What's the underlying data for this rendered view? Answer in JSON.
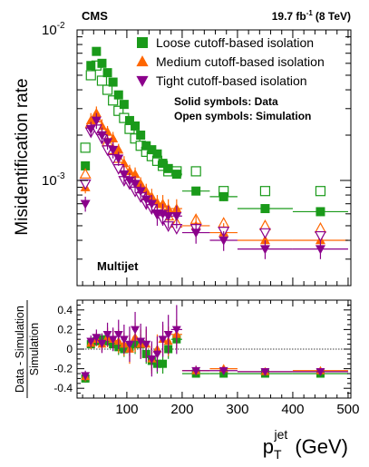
{
  "chart_data": [
    {
      "type": "scatter",
      "panel": "top",
      "title": "",
      "xlabel": "",
      "ylabel": "Misidentification rate",
      "xlim": [
        10,
        505
      ],
      "ylim": [
        0.0002,
        0.01
      ],
      "yscale": "log",
      "grid": false,
      "yticks": [
        {
          "value": 0.001,
          "base": "10",
          "exp": "-3"
        },
        {
          "value": 0.01,
          "base": "10",
          "exp": "-2"
        }
      ],
      "header_left": "CMS",
      "lumi": {
        "value": "19.7 fb",
        "exp": "-1",
        "energy": "(8 TeV)"
      },
      "legend_position": "top-right",
      "notes": [
        "Solid symbols: Data",
        "Open symbols: Simulation"
      ],
      "process_label": "Multijet",
      "colors": {
        "loose": "#1a9a1a",
        "medium": "#ff6600",
        "tight": "#8b008b"
      },
      "x_bins": [
        {
          "x": 25,
          "xw": 5
        },
        {
          "x": 35,
          "xw": 5
        },
        {
          "x": 45,
          "xw": 5
        },
        {
          "x": 55,
          "xw": 5
        },
        {
          "x": 65,
          "xw": 5
        },
        {
          "x": 75,
          "xw": 5
        },
        {
          "x": 85,
          "xw": 5
        },
        {
          "x": 95,
          "xw": 5
        },
        {
          "x": 105,
          "xw": 5
        },
        {
          "x": 115,
          "xw": 5
        },
        {
          "x": 125,
          "xw": 5
        },
        {
          "x": 135,
          "xw": 5
        },
        {
          "x": 145,
          "xw": 5
        },
        {
          "x": 155,
          "xw": 5
        },
        {
          "x": 165,
          "xw": 5
        },
        {
          "x": 175,
          "xw": 5
        },
        {
          "x": 190,
          "xw": 10
        },
        {
          "x": 225,
          "xw": 25
        },
        {
          "x": 275,
          "xw": 25
        },
        {
          "x": 350,
          "xw": 50
        },
        {
          "x": 450,
          "xw": 50
        }
      ],
      "series": [
        {
          "name": "Loose cutoff-based isolation",
          "color_key": "loose",
          "marker": "square",
          "data": [
            0.00125,
            0.0058,
            0.0072,
            0.006,
            0.0052,
            0.0045,
            0.0037,
            0.0032,
            0.0025,
            0.0023,
            0.002,
            0.0017,
            0.0016,
            0.0015,
            0.0013,
            0.0012,
            0.0011,
            0.00085,
            0.00078,
            0.00065,
            0.00062
          ],
          "mc": [
            0.00165,
            0.005,
            0.0058,
            0.0046,
            0.004,
            0.0034,
            0.0029,
            0.0026,
            0.0022,
            0.0019,
            0.0017,
            0.00155,
            0.00145,
            0.00135,
            0.00125,
            0.00115,
            0.00115,
            0.00115,
            0.00085,
            0.00085,
            0.00085
          ],
          "err": [
            5e-05,
            0.0003,
            0.0004,
            0.0003,
            0.00025,
            0.0002,
            0.00015,
            0.00015,
            0.0001,
            0.0001,
            0.0001,
            8e-05,
            8e-05,
            8e-05,
            7e-05,
            7e-05,
            7e-05,
            5e-05,
            5e-05,
            4e-05,
            4e-05
          ]
        },
        {
          "name": "Medium cutoff-based isolation",
          "color_key": "medium",
          "marker": "triangle-up",
          "data": [
            0.0009,
            0.0025,
            0.0028,
            0.0023,
            0.0021,
            0.0019,
            0.0016,
            0.0013,
            0.00115,
            0.0011,
            0.00095,
            0.00085,
            0.00078,
            0.0007,
            0.0007,
            0.00065,
            0.00065,
            0.0005,
            0.00045,
            0.0004,
            0.0004
          ],
          "mc": [
            0.0011,
            0.0024,
            0.0026,
            0.0022,
            0.0018,
            0.0016,
            0.0014,
            0.0012,
            0.0011,
            0.00095,
            0.00088,
            0.0008,
            0.00075,
            0.0007,
            0.00062,
            0.00058,
            0.00052,
            0.00055,
            0.00052,
            0.0005,
            0.00048
          ],
          "err": [
            8e-05,
            0.0003,
            0.0003,
            0.00025,
            0.0002,
            0.0002,
            0.00015,
            0.00015,
            0.00012,
            0.00012,
            0.0001,
            0.0001,
            0.0001,
            0.0001,
            0.0001,
            0.0001,
            0.0001,
            8e-05,
            7e-05,
            6e-05,
            6e-05
          ]
        },
        {
          "name": "Tight cutoff-based isolation",
          "color_key": "tight",
          "marker": "triangle-down",
          "data": [
            0.0007,
            0.0022,
            0.0025,
            0.002,
            0.0018,
            0.0016,
            0.0014,
            0.0011,
            0.001,
            0.00095,
            0.00085,
            0.00075,
            0.0007,
            0.0006,
            0.0006,
            0.00058,
            0.00058,
            0.00045,
            0.0004,
            0.00035,
            0.00035
          ],
          "mc": [
            0.00095,
            0.0021,
            0.0022,
            0.0019,
            0.0016,
            0.0014,
            0.0012,
            0.001,
            0.00095,
            0.00085,
            0.00078,
            0.0007,
            0.00065,
            0.0006,
            0.00055,
            0.0005,
            0.00048,
            0.00048,
            0.00046,
            0.00045,
            0.00043
          ],
          "err": [
            8e-05,
            0.00025,
            0.0003,
            0.00025,
            0.0002,
            0.0002,
            0.00015,
            0.00015,
            0.00012,
            0.00012,
            0.0001,
            0.0001,
            0.0001,
            0.0001,
            0.0001,
            0.0001,
            0.0001,
            7e-05,
            6e-05,
            5e-05,
            5e-05
          ]
        }
      ]
    },
    {
      "type": "scatter",
      "panel": "ratio",
      "title": "",
      "xlabel": "p",
      "xlabel_sub": "T",
      "xlabel_sup": "jet",
      "xlabel_unit": "(GeV)",
      "ylabel_num": "Data - Simulation",
      "ylabel_den": "Simulation",
      "xlim": [
        10,
        505
      ],
      "ylim": [
        -0.5,
        0.5
      ],
      "xticks": [
        100,
        200,
        300,
        400,
        500
      ],
      "yticks": [
        -0.4,
        -0.2,
        0,
        0.2,
        0.4
      ],
      "ytick_labels": [
        "-0.4",
        "-0.2",
        "0",
        "0.2",
        "0.4"
      ],
      "grid": false,
      "reference_line": 0,
      "series": [
        {
          "color_key": "loose",
          "marker": "square",
          "values": [
            -0.3,
            0.05,
            0.08,
            0.1,
            0.08,
            0.05,
            0.02,
            0.0,
            0.02,
            0.05,
            0.05,
            -0.05,
            -0.12,
            -0.15,
            -0.15,
            0.0,
            0.1,
            -0.25,
            -0.25,
            -0.25,
            -0.25
          ],
          "err": [
            0.04,
            0.05,
            0.05,
            0.06,
            0.06,
            0.07,
            0.08,
            0.08,
            0.09,
            0.1,
            0.1,
            0.1,
            0.1,
            0.1,
            0.1,
            0.1,
            0.1,
            0.04,
            0.03,
            0.02,
            0.02
          ]
        },
        {
          "color_key": "medium",
          "marker": "triangle-up",
          "values": [
            -0.28,
            0.06,
            0.1,
            0.05,
            0.12,
            0.1,
            0.08,
            0.05,
            0.0,
            0.12,
            0.05,
            0.05,
            -0.1,
            0.0,
            0.1,
            0.08,
            0.15,
            -0.22,
            -0.2,
            -0.23,
            -0.22
          ],
          "err": [
            0.05,
            0.06,
            0.07,
            0.08,
            0.1,
            0.1,
            0.12,
            0.12,
            0.15,
            0.15,
            0.15,
            0.15,
            0.15,
            0.15,
            0.15,
            0.15,
            0.15,
            0.05,
            0.04,
            0.03,
            0.03
          ]
        },
        {
          "color_key": "tight",
          "marker": "triangle-down",
          "values": [
            -0.27,
            0.08,
            0.12,
            0.06,
            0.15,
            0.1,
            0.15,
            0.1,
            0.05,
            0.2,
            0.08,
            0.05,
            -0.1,
            -0.05,
            0.1,
            0.15,
            0.2,
            -0.22,
            -0.22,
            -0.23,
            -0.23
          ],
          "err": [
            0.05,
            0.06,
            0.08,
            0.1,
            0.12,
            0.12,
            0.15,
            0.15,
            0.18,
            0.18,
            0.18,
            0.18,
            0.18,
            0.18,
            0.18,
            0.2,
            0.25,
            0.05,
            0.04,
            0.03,
            0.03
          ]
        }
      ]
    }
  ]
}
